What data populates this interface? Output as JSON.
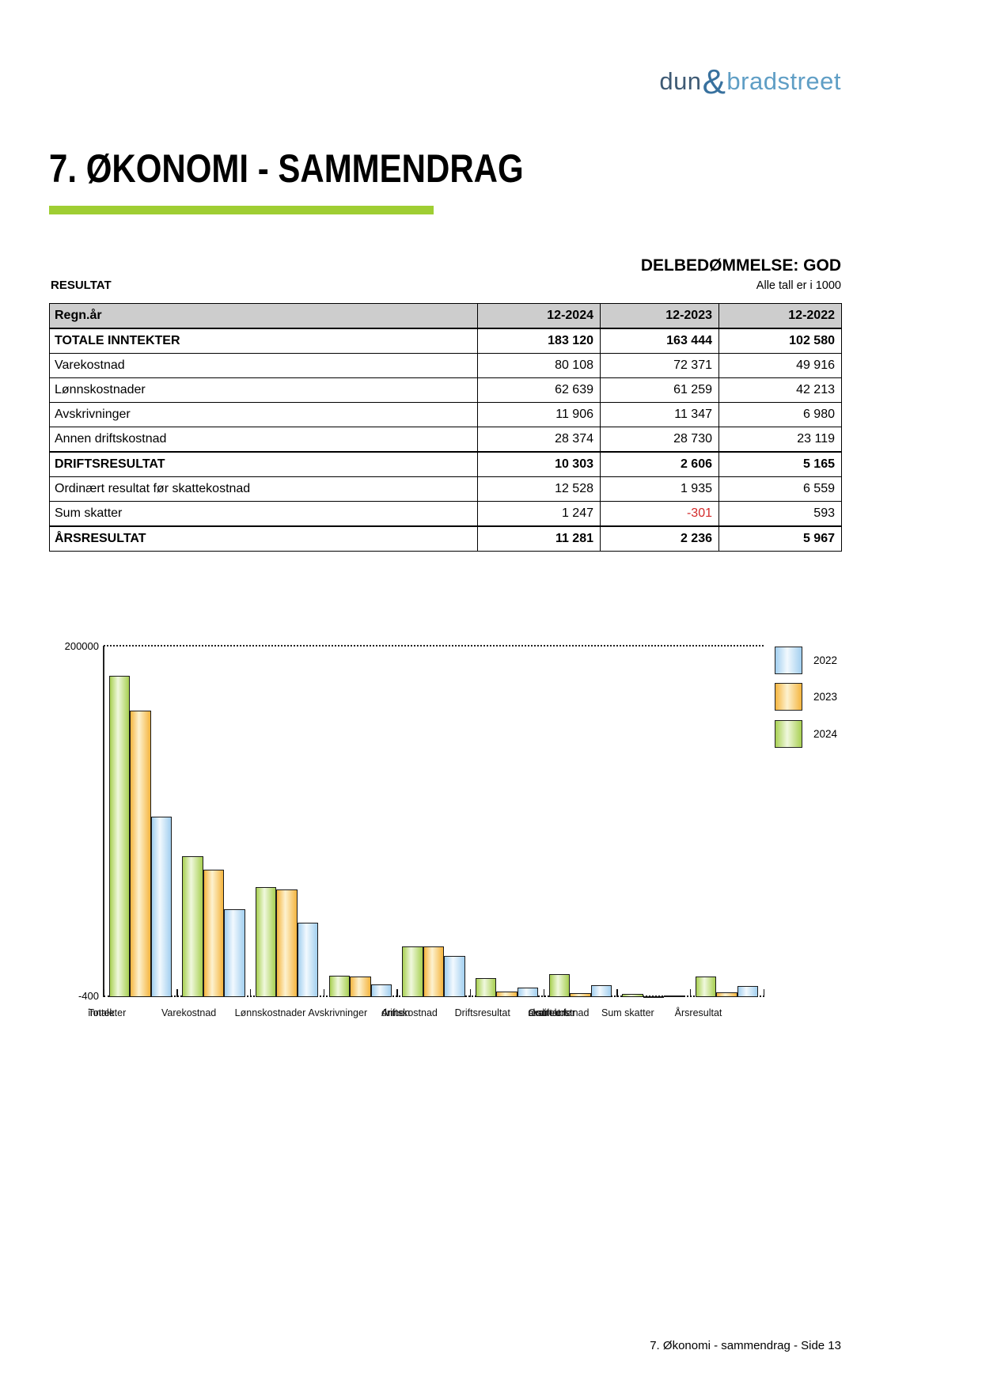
{
  "logo": {
    "part1": "dun",
    "amp": "&",
    "part2": "bradstreet"
  },
  "header": {
    "title": "7. ØKONOMI - SAMMENDRAG"
  },
  "assessment": {
    "label": "DELBEDØMMELSE: GOD"
  },
  "table": {
    "section_label": "RESULTAT",
    "unit_note": "Alle tall er i 1000",
    "columns": [
      "Regn.år",
      "12-2024",
      "12-2023",
      "12-2022"
    ],
    "rows": [
      {
        "label": "TOTALE INNTEKTER",
        "values": [
          "183 120",
          "163 444",
          "102 580"
        ],
        "bold": true
      },
      {
        "label": "Varekostnad",
        "values": [
          "80 108",
          "72 371",
          "49 916"
        ],
        "bold": false
      },
      {
        "label": "Lønnskostnader",
        "values": [
          "62 639",
          "61 259",
          "42 213"
        ],
        "bold": false
      },
      {
        "label": "Avskrivninger",
        "values": [
          "11 906",
          "11 347",
          "6 980"
        ],
        "bold": false
      },
      {
        "label": "Annen driftskostnad",
        "values": [
          "28 374",
          "28 730",
          "23 119"
        ],
        "bold": false
      },
      {
        "label": "DRIFTSRESULTAT",
        "values": [
          "10 303",
          "2 606",
          "5 165"
        ],
        "bold": true,
        "heavy_top": true
      },
      {
        "label": "Ordinært resultat før skattekostnad",
        "values": [
          "12 528",
          "1 935",
          "6 559"
        ],
        "bold": false
      },
      {
        "label": "Sum skatter",
        "values": [
          "1 247",
          "-301",
          "593"
        ],
        "bold": false
      },
      {
        "label": "ÅRSRESULTAT",
        "values": [
          "11 281",
          "2 236",
          "5 967"
        ],
        "bold": true,
        "heavy_top": true
      }
    ]
  },
  "chart_data": {
    "type": "bar",
    "title": "",
    "categories": [
      "Totale inntekter",
      "Varekostnad",
      "Lønnskostnader",
      "Avskrivninger",
      "Annen driftskostnad",
      "Driftsresultat",
      "Ordinært resultat før skattekostnad",
      "Sum skatter",
      "Årsresultat"
    ],
    "category_label_lines": [
      [
        "Totale",
        "inntekter"
      ],
      [
        "Varekostnad"
      ],
      [
        "Lønnskostnader"
      ],
      [
        "Avskrivninger"
      ],
      [
        "Annen",
        "driftskostnad"
      ],
      [
        "Driftsresultat"
      ],
      [
        "Ordinært",
        "resultat før",
        "skattekostnad"
      ],
      [
        "Sum skatter"
      ],
      [
        "Årsresultat"
      ]
    ],
    "series": [
      {
        "name": "2024",
        "values": [
          183120,
          80108,
          62639,
          11906,
          28374,
          10303,
          12528,
          1247,
          11281
        ],
        "edge_color": "#a8d052",
        "mid_color": "#f0f8de"
      },
      {
        "name": "2023",
        "values": [
          163444,
          72371,
          61259,
          11347,
          28730,
          2606,
          1935,
          -301,
          2236
        ],
        "edge_color": "#f5b53f",
        "mid_color": "#fdf2d0"
      },
      {
        "name": "2022",
        "values": [
          102580,
          49916,
          42213,
          6980,
          23119,
          5165,
          6559,
          593,
          5967
        ],
        "edge_color": "#a2cfef",
        "mid_color": "#f2f9fe"
      }
    ],
    "legend_entries": [
      "2022",
      "2023",
      "2024"
    ],
    "legend_position": "right-top",
    "ylim": [
      -400,
      200000
    ],
    "ytick_labels": {
      "top": "200000",
      "bottom": "-400"
    },
    "grid": "dotted line at y=200000 and dotted baseline at y=-400"
  },
  "footer": {
    "text": "7. Økonomi - sammendrag - Side 13"
  },
  "colors": {
    "accent_green_rule": "#9fce33",
    "table_header_bg": "#cdcdcd",
    "negative_red": "#d32a2a",
    "logo_dun": "#3e5a74",
    "logo_amp": "#38719e",
    "logo_bradstreet": "#5f9ec5",
    "bar_2024_edge": "#a8d052",
    "bar_2023_edge": "#f5b53f",
    "bar_2022_edge": "#a2cfef"
  }
}
